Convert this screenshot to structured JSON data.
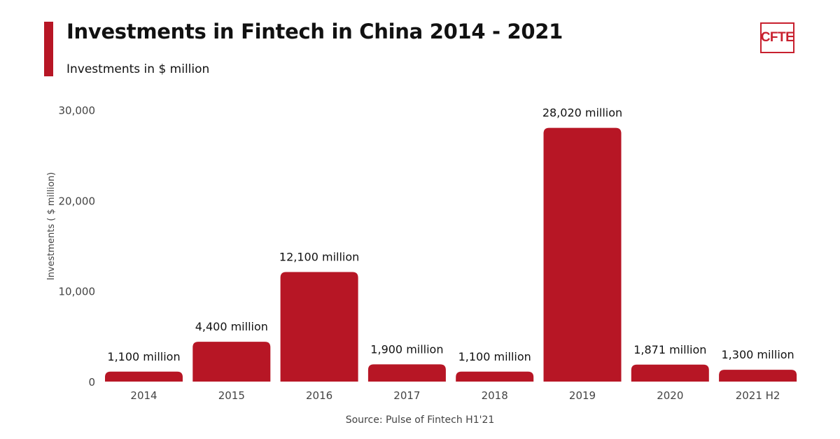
{
  "header": {
    "title": "Investments in Fintech in China 2014 - 2021",
    "subtitle": "Investments in $ million",
    "logo_text": "CFTE"
  },
  "source": "Source: Pulse of Fintech H1'21",
  "colors": {
    "bar": "#b71625",
    "accent": "#b71625",
    "logo": "#c8202e"
  },
  "chart_data": {
    "type": "bar",
    "title": "Investments in Fintech in China 2014 - 2021",
    "subtitle": "Investments in $ million",
    "xlabel": "",
    "ylabel": "Investments ( $ million)",
    "ylim": [
      0,
      30000
    ],
    "yticks": [
      0,
      10000,
      20000,
      30000
    ],
    "ytick_labels": [
      "0",
      "10,000",
      "20,000",
      "30,000"
    ],
    "grid": false,
    "categories": [
      "2014",
      "2015",
      "2016",
      "2017",
      "2018",
      "2019",
      "2020",
      "2021 H2"
    ],
    "values": [
      1100,
      4400,
      12100,
      1900,
      1100,
      28020,
      1871,
      1300
    ],
    "data_labels": [
      "1,100 million",
      "4,400 million",
      "12,100 million",
      "1,900 million",
      "1,100 million",
      "28,020 million",
      "1,871 million",
      "1,300 million"
    ]
  }
}
